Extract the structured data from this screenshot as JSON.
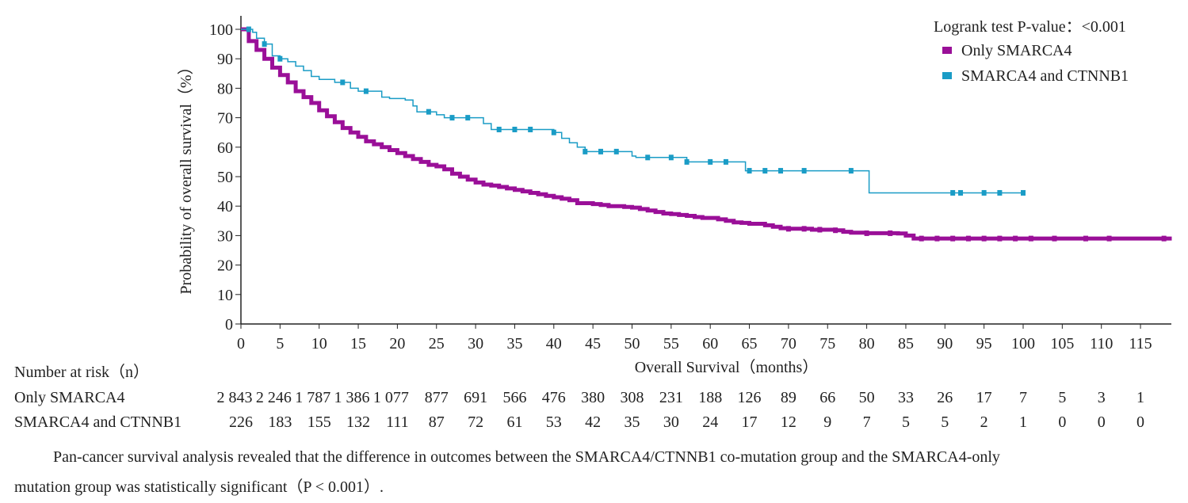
{
  "chart_data": {
    "type": "line",
    "subtype": "kaplan-meier",
    "xlabel": "Overall Survival（months）",
    "ylabel": "Probability of overall survival（%）",
    "xlim": [
      0,
      119
    ],
    "ylim": [
      0,
      100
    ],
    "xticks": [
      0,
      5,
      10,
      15,
      20,
      25,
      30,
      35,
      40,
      45,
      50,
      55,
      60,
      65,
      70,
      75,
      80,
      85,
      90,
      95,
      100,
      105,
      110,
      115
    ],
    "yticks": [
      0,
      10,
      20,
      30,
      40,
      50,
      60,
      70,
      80,
      90,
      100
    ],
    "legend_position": "top-right",
    "annotation": "Logrank test P-value：<0.001",
    "series": [
      {
        "name": "Only SMARCA4",
        "color": "#9a0f98",
        "points": [
          [
            0,
            100
          ],
          [
            1,
            96
          ],
          [
            2,
            93
          ],
          [
            3,
            90
          ],
          [
            4,
            87
          ],
          [
            5,
            84.5
          ],
          [
            6,
            82
          ],
          [
            7,
            79
          ],
          [
            8,
            77
          ],
          [
            9,
            75
          ],
          [
            10,
            72.5
          ],
          [
            11,
            70.5
          ],
          [
            12,
            68.5
          ],
          [
            13,
            66.5
          ],
          [
            14,
            65
          ],
          [
            15,
            63.5
          ],
          [
            16,
            62
          ],
          [
            17,
            61
          ],
          [
            18,
            60
          ],
          [
            19,
            59
          ],
          [
            20,
            58
          ],
          [
            21,
            57
          ],
          [
            22,
            56
          ],
          [
            23,
            55
          ],
          [
            24,
            54
          ],
          [
            25,
            53.5
          ],
          [
            26,
            52.5
          ],
          [
            27,
            51
          ],
          [
            28,
            50
          ],
          [
            29,
            49
          ],
          [
            30,
            48
          ],
          [
            31,
            47.3
          ],
          [
            32,
            47
          ],
          [
            33,
            46.5
          ],
          [
            34,
            46
          ],
          [
            35,
            45.5
          ],
          [
            36,
            45
          ],
          [
            37,
            44.5
          ],
          [
            38,
            44
          ],
          [
            39,
            43.5
          ],
          [
            40,
            43
          ],
          [
            41,
            42.5
          ],
          [
            42,
            42
          ],
          [
            43,
            41
          ],
          [
            45,
            40.7
          ],
          [
            46,
            40.4
          ],
          [
            47,
            40
          ],
          [
            49,
            39.7
          ],
          [
            50,
            39.5
          ],
          [
            51,
            39
          ],
          [
            52,
            38.5
          ],
          [
            53,
            38
          ],
          [
            54,
            37.5
          ],
          [
            55,
            37.3
          ],
          [
            56,
            37
          ],
          [
            57,
            36.7
          ],
          [
            58,
            36.3
          ],
          [
            59,
            36
          ],
          [
            61,
            35.5
          ],
          [
            62,
            35
          ],
          [
            63,
            34.5
          ],
          [
            64,
            34.3
          ],
          [
            65,
            34
          ],
          [
            67,
            33.5
          ],
          [
            68,
            33
          ],
          [
            69,
            32.5
          ],
          [
            70,
            32.3
          ],
          [
            73,
            32
          ],
          [
            76,
            31.8
          ],
          [
            77,
            31.3
          ],
          [
            78,
            31
          ],
          [
            80,
            30.8
          ],
          [
            84,
            30.7
          ],
          [
            85,
            30
          ],
          [
            86,
            29
          ],
          [
            119,
            29
          ]
        ],
        "censored": [
          70,
          72,
          74,
          76,
          80,
          83,
          87,
          89,
          91,
          93,
          95,
          97,
          99,
          101,
          104,
          108,
          111,
          118
        ]
      },
      {
        "name": "SMARCA4 and CTNNB1",
        "color": "#1a9cc6",
        "points": [
          [
            0,
            100
          ],
          [
            1.5,
            99
          ],
          [
            2,
            97
          ],
          [
            3,
            95
          ],
          [
            4,
            91
          ],
          [
            5,
            90
          ],
          [
            6,
            89
          ],
          [
            7,
            87.5
          ],
          [
            8,
            86
          ],
          [
            9,
            84
          ],
          [
            10,
            83
          ],
          [
            12,
            82
          ],
          [
            14,
            80
          ],
          [
            15,
            79
          ],
          [
            18,
            77
          ],
          [
            19,
            76.5
          ],
          [
            21,
            76
          ],
          [
            22,
            74
          ],
          [
            22.5,
            72
          ],
          [
            25,
            71
          ],
          [
            26,
            70
          ],
          [
            31,
            68
          ],
          [
            32,
            66
          ],
          [
            38,
            66
          ],
          [
            40,
            65
          ],
          [
            41,
            63
          ],
          [
            42,
            61.5
          ],
          [
            43,
            60
          ],
          [
            44,
            58.5
          ],
          [
            50,
            57
          ],
          [
            50.5,
            56.5
          ],
          [
            56,
            56.5
          ],
          [
            57,
            55
          ],
          [
            64,
            55
          ],
          [
            64.5,
            52
          ],
          [
            80,
            52
          ],
          [
            80.3,
            44.5
          ],
          [
            100,
            44.5
          ]
        ],
        "censored": [
          1,
          3,
          5,
          13,
          16,
          24,
          27,
          29,
          33,
          35,
          37,
          40,
          44,
          46,
          48,
          52,
          55,
          57,
          60,
          62,
          65,
          67,
          69,
          72,
          78,
          91,
          92,
          95,
          97,
          100
        ]
      }
    ],
    "at_risk": {
      "title": "Number at risk（n）",
      "rows": [
        {
          "label": "Only SMARCA4",
          "values": [
            "2 843",
            "2 246",
            "1 787",
            "1 386",
            "1 077",
            "877",
            "691",
            "566",
            "476",
            "380",
            "308",
            "231",
            "188",
            "126",
            "89",
            "66",
            "50",
            "33",
            "26",
            "17",
            "7",
            "5",
            "3",
            "1"
          ]
        },
        {
          "label": "SMARCA4 and CTNNB1",
          "values": [
            "226",
            "183",
            "155",
            "132",
            "111",
            "87",
            "72",
            "61",
            "53",
            "42",
            "35",
            "30",
            "24",
            "17",
            "12",
            "9",
            "7",
            "5",
            "5",
            "2",
            "1",
            "0",
            "0",
            "0"
          ]
        }
      ]
    }
  },
  "caption": {
    "line1": "Pan-cancer survival analysis revealed that the difference in outcomes between the SMARCA4/CTNNB1 co-mutation group and the SMARCA4-only",
    "line2": "mutation group was statistically significant（P < 0.001）."
  }
}
